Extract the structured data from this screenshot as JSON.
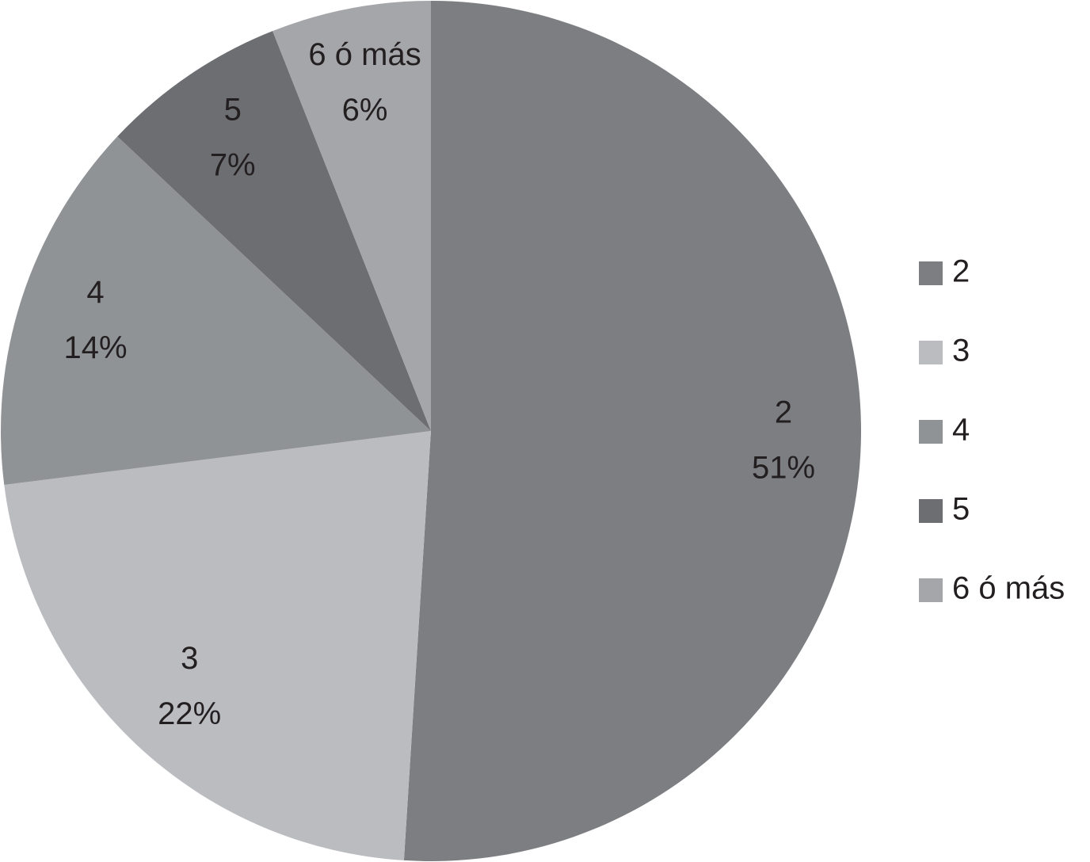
{
  "chart_data": {
    "type": "pie",
    "categories": [
      "2",
      "3",
      "4",
      "5",
      "6 ó más"
    ],
    "values": [
      51,
      22,
      14,
      7,
      6
    ],
    "value_labels": [
      "51%",
      "22%",
      "14%",
      "7%",
      "6%"
    ],
    "colors": [
      "#7d7e82",
      "#bbbcc0",
      "#909396",
      "#6d6e72",
      "#a5a6aa"
    ],
    "legend": "right"
  }
}
